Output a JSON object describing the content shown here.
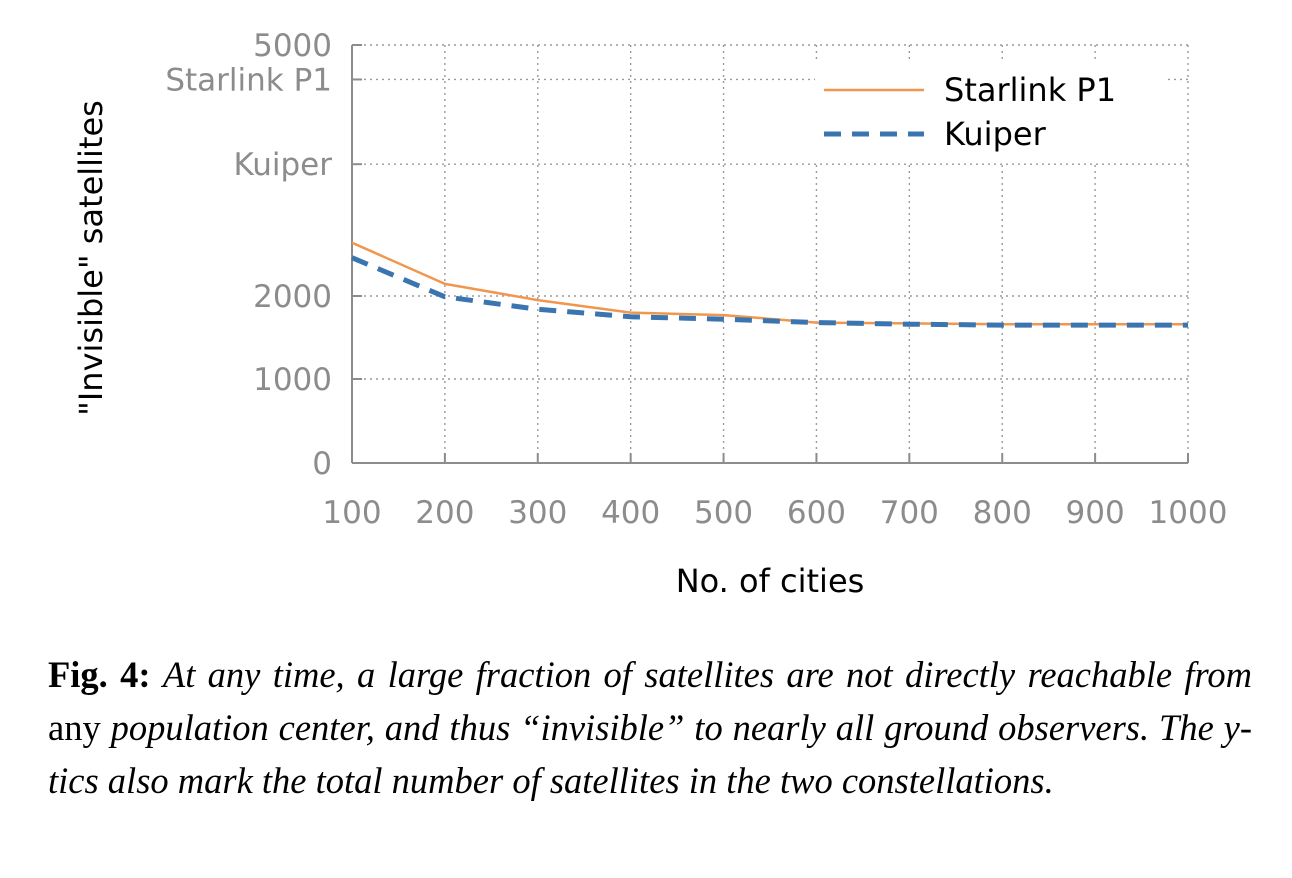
{
  "chart_data": {
    "type": "line",
    "xlabel": "No. of cities",
    "ylabel": "\"Invisible\" satellites",
    "x": [
      100,
      200,
      300,
      400,
      500,
      600,
      700,
      800,
      900,
      1000
    ],
    "x_ticks": [
      "100",
      "200",
      "300",
      "400",
      "500",
      "600",
      "700",
      "800",
      "900",
      "1000"
    ],
    "xlim": [
      100,
      1000
    ],
    "y_scale": "piecewise (0–1000 and 1000–2000 linear, 2000–5000 logarithmic)",
    "ylim": [
      0,
      5000
    ],
    "y_ticks": [
      {
        "value": 0,
        "label": "0"
      },
      {
        "value": 1000,
        "label": "1000"
      },
      {
        "value": 2000,
        "label": "2000"
      },
      {
        "value": 3236,
        "label": "Kuiper"
      },
      {
        "value": 4409,
        "label": "Starlink P1"
      },
      {
        "value": 5000,
        "label": "5000"
      }
    ],
    "grid": true,
    "legend_position": "top-right",
    "series": [
      {
        "name": "Starlink P1",
        "color": "#f0974f",
        "style": "solid",
        "values": [
          2430,
          2090,
          1950,
          1800,
          1770,
          1680,
          1670,
          1660,
          1660,
          1660
        ]
      },
      {
        "name": "Kuiper",
        "color": "#3b75b0",
        "style": "dashed",
        "values": [
          2300,
          1990,
          1840,
          1750,
          1720,
          1680,
          1660,
          1650,
          1650,
          1650
        ]
      }
    ]
  },
  "caption": {
    "label": "Fig. 4:",
    "part1": "At any time, a large fraction of satellites are not directly reachable from",
    "part2": "any",
    "part3": "population center, and thus “invisible” to nearly all ground observers. The y-tics also mark the total number of satellites in the two constellations."
  }
}
